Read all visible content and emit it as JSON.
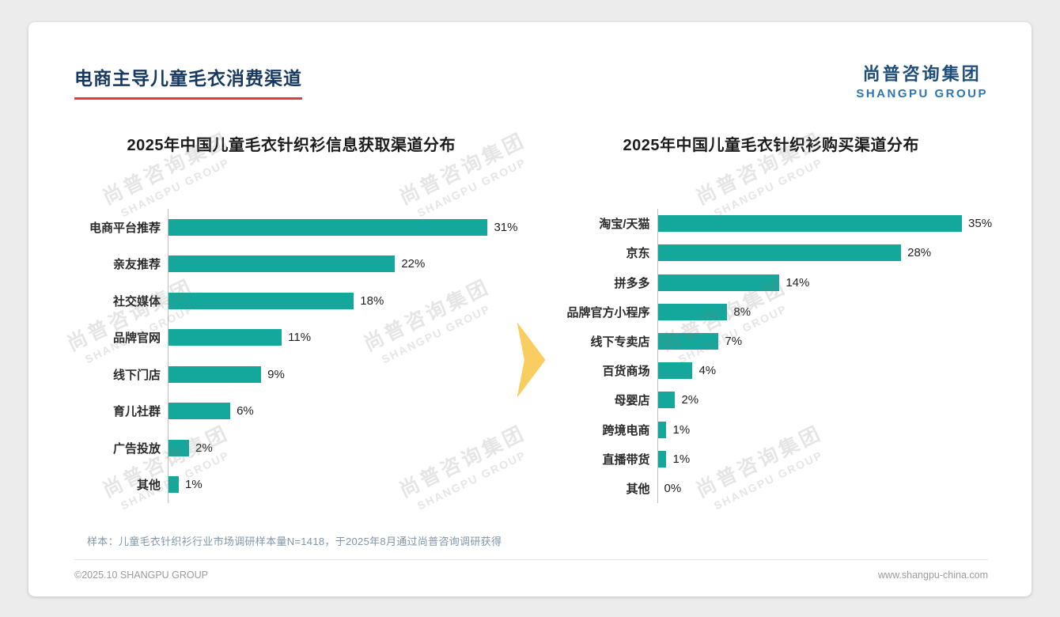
{
  "header": {
    "title": "电商主导儿童毛衣消费渠道",
    "logo_cn": "尚普咨询集团",
    "logo_en": "SHANGPU GROUP"
  },
  "watermark": {
    "cn": "尚普咨询集团",
    "en": "SHANGPU GROUP"
  },
  "colors": {
    "bar_teal": "#14A79B",
    "title_navy": "#17395F",
    "underline_red": "#E23B3B",
    "arrow_yellow": "#F8CE63",
    "logo_blue": "#1F4E79",
    "logo_blue_light": "#2E74AE"
  },
  "chart_data": [
    {
      "type": "bar",
      "orientation": "horizontal",
      "title": "2025年中国儿童毛衣针织衫信息获取渠道分布",
      "categories": [
        "电商平台推荐",
        "亲友推荐",
        "社交媒体",
        "品牌官网",
        "线下门店",
        "育儿社群",
        "广告投放",
        "其他"
      ],
      "values": [
        31,
        22,
        18,
        11,
        9,
        6,
        2,
        1
      ],
      "value_labels": [
        "31%",
        "22%",
        "18%",
        "11%",
        "9%",
        "6%",
        "2%",
        "1%"
      ],
      "xlabel": "",
      "ylabel": "",
      "xlim": [
        0,
        33
      ],
      "grid": false,
      "legend": false
    },
    {
      "type": "bar",
      "orientation": "horizontal",
      "title": "2025年中国儿童毛衣针织衫购买渠道分布",
      "categories": [
        "淘宝/天猫",
        "京东",
        "拼多多",
        "品牌官方小程序",
        "线下专卖店",
        "百货商场",
        "母婴店",
        "跨境电商",
        "直播带货",
        "其他"
      ],
      "values": [
        35,
        28,
        14,
        8,
        7,
        4,
        2,
        1,
        1,
        0
      ],
      "value_labels": [
        "35%",
        "28%",
        "14%",
        "8%",
        "7%",
        "4%",
        "2%",
        "1%",
        "1%",
        "0%"
      ],
      "xlabel": "",
      "ylabel": "",
      "xlim": [
        0,
        38
      ],
      "grid": false,
      "legend": false
    }
  ],
  "footer": {
    "sample_note": "样本：儿童毛衣针织衫行业市场调研样本量N=1418，于2025年8月通过尚普咨询调研获得",
    "copyright": "©2025.10 SHANGPU GROUP",
    "website": "www.shangpu-china.com"
  }
}
